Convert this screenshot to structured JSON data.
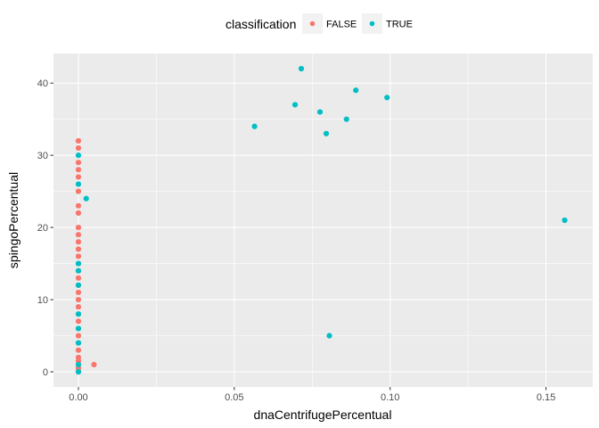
{
  "chart_data": {
    "type": "scatter",
    "xlabel": "dnaCentrifugePercentual",
    "ylabel": "spingoPercentual",
    "xlim": [
      -0.008,
      0.165
    ],
    "ylim": [
      -2.1,
      44.1
    ],
    "x_ticks": [
      0.0,
      0.05,
      0.1,
      0.15
    ],
    "x_tick_labels": [
      "0.00",
      "0.05",
      "0.10",
      "0.15"
    ],
    "y_ticks": [
      0,
      10,
      20,
      30,
      40
    ],
    "y_tick_labels": [
      "0",
      "10",
      "20",
      "30",
      "40"
    ],
    "grid": true,
    "legend": {
      "title": "classification",
      "position": "top"
    },
    "series": [
      {
        "name": "FALSE",
        "color": "#F8766D",
        "points": [
          [
            0,
            0
          ],
          [
            0,
            0.5
          ],
          [
            0,
            1
          ],
          [
            0,
            1.5
          ],
          [
            0,
            2
          ],
          [
            0,
            3
          ],
          [
            0,
            4
          ],
          [
            0,
            5
          ],
          [
            0,
            6
          ],
          [
            0,
            7
          ],
          [
            0,
            8
          ],
          [
            0,
            9
          ],
          [
            0,
            10
          ],
          [
            0,
            11
          ],
          [
            0,
            12
          ],
          [
            0,
            13
          ],
          [
            0,
            14
          ],
          [
            0,
            15
          ],
          [
            0,
            16
          ],
          [
            0,
            17
          ],
          [
            0,
            18
          ],
          [
            0,
            19
          ],
          [
            0,
            20
          ],
          [
            0,
            22
          ],
          [
            0,
            23
          ],
          [
            0,
            25
          ],
          [
            0,
            27
          ],
          [
            0,
            28
          ],
          [
            0,
            29
          ],
          [
            0,
            31
          ],
          [
            0,
            32
          ],
          [
            0.005,
            1
          ]
        ]
      },
      {
        "name": "TRUE",
        "color": "#00BFC4",
        "points": [
          [
            0,
            0
          ],
          [
            0,
            1
          ],
          [
            0,
            4
          ],
          [
            0,
            6
          ],
          [
            0,
            8
          ],
          [
            0,
            12
          ],
          [
            0,
            14
          ],
          [
            0,
            15
          ],
          [
            0,
            26
          ],
          [
            0,
            30
          ],
          [
            0.0025,
            24
          ],
          [
            0.0565,
            34
          ],
          [
            0.0695,
            37
          ],
          [
            0.0715,
            42
          ],
          [
            0.0775,
            36
          ],
          [
            0.0795,
            33
          ],
          [
            0.0805,
            5
          ],
          [
            0.086,
            35
          ],
          [
            0.089,
            39
          ],
          [
            0.099,
            38
          ],
          [
            0.156,
            21
          ]
        ]
      }
    ]
  }
}
